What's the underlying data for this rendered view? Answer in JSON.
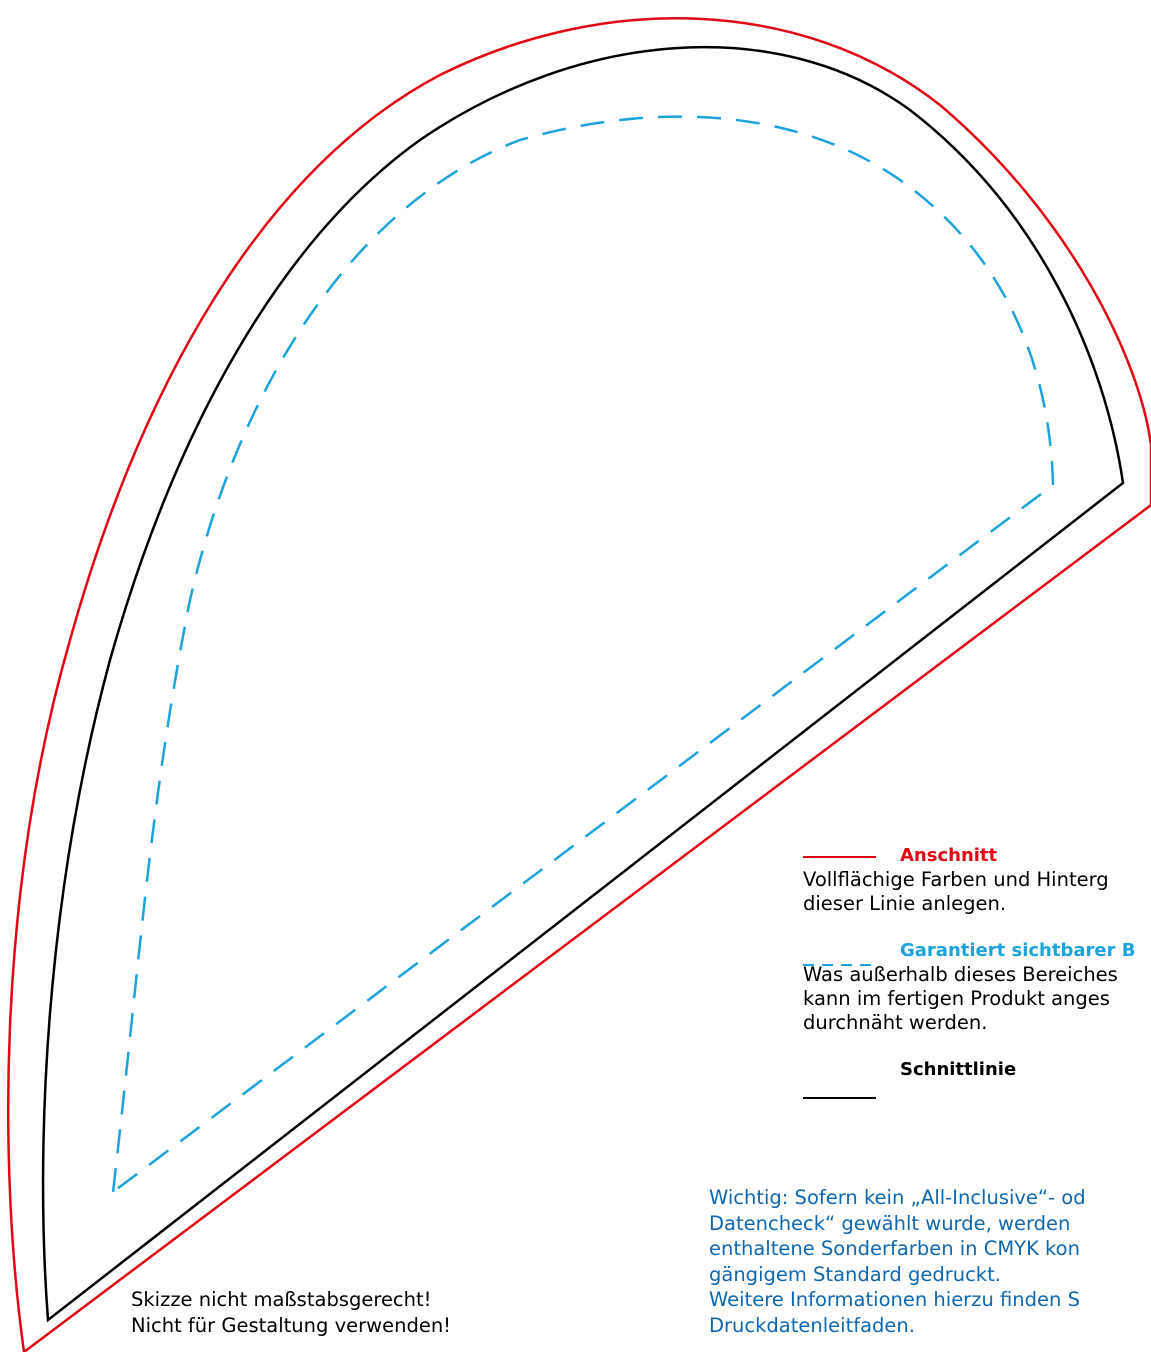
{
  "colors": {
    "bleed": "#e30613",
    "safe": "#1aa3dd",
    "cut": "#000000",
    "info": "#0d67b1"
  },
  "legend": {
    "bleed": {
      "title": "Anschnitt",
      "desc": "Vollflächige Farben und Hinterg\ndieser Linie anlegen."
    },
    "safe": {
      "title": "Garantiert sichtbarer B",
      "desc": "Was außerhalb dieses Bereiches\nkann im fertigen Produkt anges\ndurchnäht werden."
    },
    "cut": {
      "title": "Schnittlinie"
    }
  },
  "note_left": "Skizze nicht maßstabsgerecht!\nNicht für Gestaltung verwenden!",
  "note_right": "Wichtig: Sofern kein „All-Inclusive“- od\nDatencheck“ gewählt wurde, werden\nenthaltene Sonderfarben in CMYK kon\ngängigem Standard gedruckt.\nWeitere Informationen hierzu finden S\nDruckdatenleitfaden."
}
